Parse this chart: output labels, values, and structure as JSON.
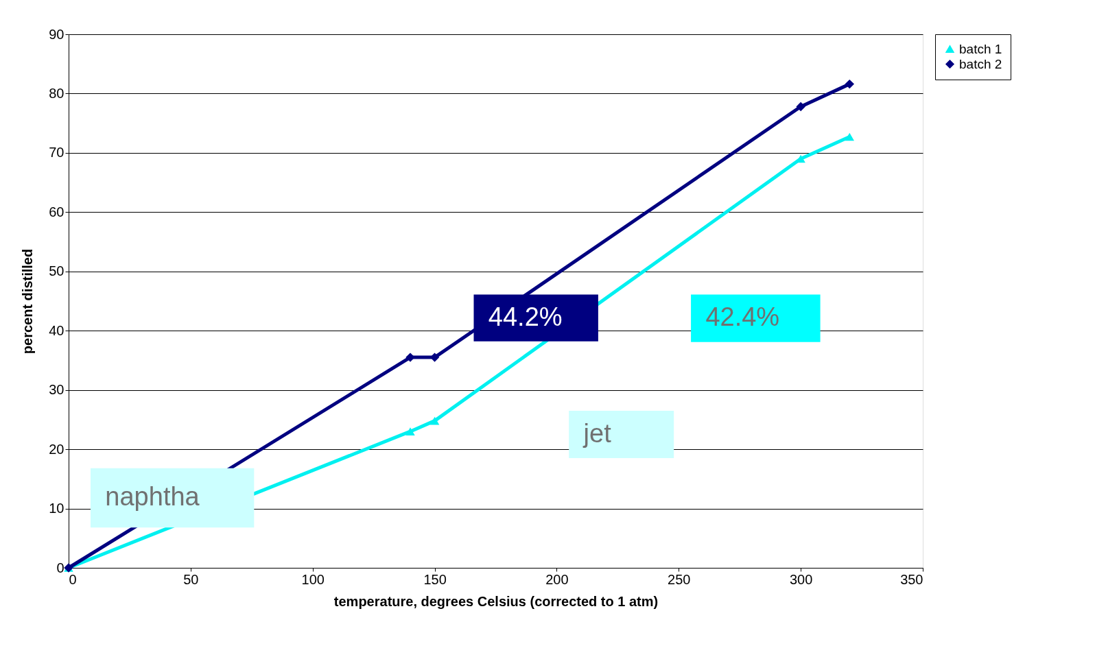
{
  "chart_data": {
    "type": "line",
    "xlabel": "temperature, degrees Celsius (corrected to 1 atm)",
    "ylabel": "percent distilled",
    "series": [
      {
        "name": "batch 1",
        "color": "#00f0f0",
        "marker": "triangle",
        "x": [
          0,
          140,
          150,
          300,
          320
        ],
        "values": [
          0,
          23.0,
          24.8,
          69.0,
          72.7
        ]
      },
      {
        "name": "batch 2",
        "color": "#000080",
        "marker": "diamond",
        "x": [
          0,
          140,
          150,
          300,
          320
        ],
        "values": [
          0,
          35.5,
          35.5,
          77.8,
          81.6
        ]
      }
    ],
    "xlim": [
      0,
      350
    ],
    "xticks": [
      0,
      50,
      100,
      150,
      200,
      250,
      300,
      350
    ],
    "ylim": [
      0,
      90
    ],
    "yticks": [
      0,
      10,
      20,
      30,
      40,
      50,
      60,
      70,
      80,
      90
    ],
    "grid": "y",
    "legend": "right",
    "line_style": "solid",
    "annotations": [
      "naphtha",
      "jet",
      "44.2%",
      "42.4%"
    ]
  }
}
